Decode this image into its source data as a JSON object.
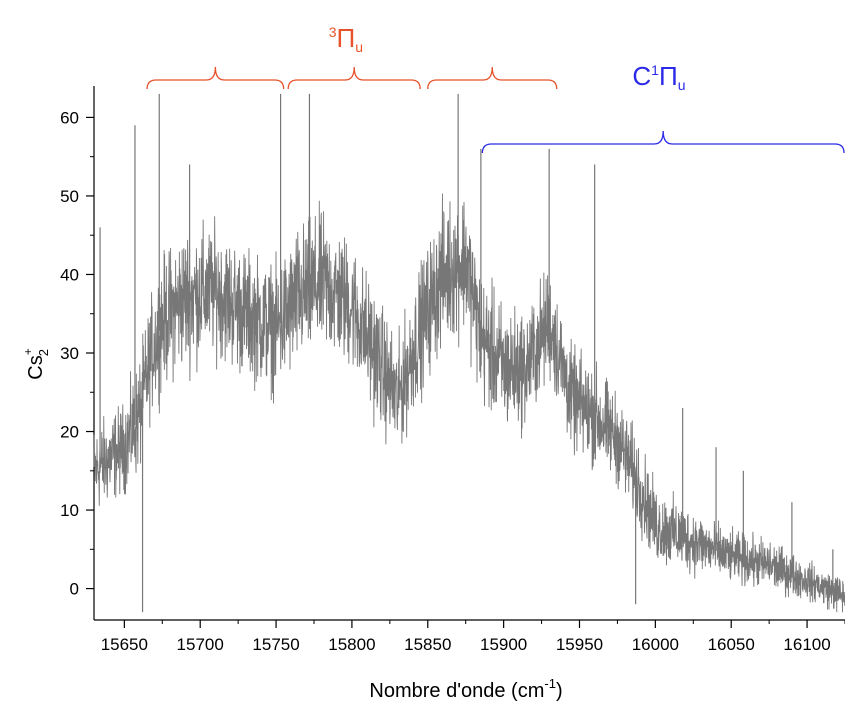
{
  "chart_data": {
    "type": "line",
    "title": "",
    "xlabel": "Nombre d'onde (cm",
    "xlabel_sup": "-1",
    "xlabel_close": ")",
    "ylabel_base": "Cs",
    "ylabel_sup": "+",
    "ylabel_sub": "2",
    "xlim": [
      15630,
      16125
    ],
    "ylim": [
      -4,
      64
    ],
    "grid": false,
    "x_ticks": [
      15650,
      15700,
      15750,
      15800,
      15850,
      15900,
      15950,
      16000,
      16050,
      16100
    ],
    "x_tick_labels": [
      "15650",
      "15700",
      "15750",
      "15800",
      "15850",
      "15900",
      "15950",
      "16000",
      "16050",
      "16100"
    ],
    "y_ticks": [
      0,
      10,
      20,
      30,
      40,
      50,
      60
    ],
    "y_tick_labels": [
      "0",
      "10",
      "20",
      "30",
      "40",
      "50",
      "60"
    ],
    "series": [
      {
        "name": "",
        "color": "#777777",
        "envelope": {
          "x": [
            15630,
            15650,
            15660,
            15668,
            15675,
            15690,
            15710,
            15730,
            15750,
            15765,
            15780,
            15800,
            15815,
            15830,
            15845,
            15860,
            15875,
            15885,
            15900,
            15915,
            15930,
            15945,
            15960,
            15975,
            15990,
            16000,
            16025,
            16050,
            16075,
            16100,
            16125
          ],
          "y": [
            15,
            18,
            22,
            30,
            34,
            37,
            38,
            35,
            33,
            37,
            39,
            36,
            30,
            24,
            33,
            40,
            42,
            32,
            28,
            28,
            34,
            24,
            22,
            19,
            13,
            8,
            6,
            4,
            3,
            1,
            -1
          ],
          "spread": [
            7,
            7,
            9,
            9,
            10,
            11,
            10,
            10,
            10,
            11,
            11,
            10,
            10,
            9,
            10,
            11,
            11,
            10,
            10,
            9,
            9,
            8,
            8,
            7,
            7,
            6,
            5,
            4,
            4,
            3,
            3
          ]
        },
        "spikes": [
          {
            "x": 15634,
            "y": 46
          },
          {
            "x": 15657,
            "y": 59
          },
          {
            "x": 15662,
            "y": -3
          },
          {
            "x": 15673,
            "y": 63
          },
          {
            "x": 15693,
            "y": 54
          },
          {
            "x": 15753,
            "y": 63
          },
          {
            "x": 15772,
            "y": 63
          },
          {
            "x": 15870,
            "y": 63
          },
          {
            "x": 15885,
            "y": 56
          },
          {
            "x": 15930,
            "y": 56
          },
          {
            "x": 15960,
            "y": 54
          },
          {
            "x": 15987,
            "y": -2
          },
          {
            "x": 16018,
            "y": 23
          },
          {
            "x": 16040,
            "y": 18
          },
          {
            "x": 16058,
            "y": 15
          },
          {
            "x": 16090,
            "y": 11
          },
          {
            "x": 16117,
            "y": 5
          }
        ]
      }
    ],
    "annotations": [
      {
        "name": "triplet",
        "sup": "3",
        "label": "Π",
        "sub": "u",
        "color": "#e8522a",
        "label_x": 15800,
        "brackets": [
          [
            15665,
            15755
          ],
          [
            15758,
            15845
          ],
          [
            15850,
            15935
          ]
        ]
      },
      {
        "name": "singlet",
        "prefix": "C",
        "sup": "1",
        "label": "Π",
        "sub": "u",
        "color": "#2a2ae8",
        "label_x": 16005,
        "brackets": [
          [
            15886,
            16125
          ]
        ]
      }
    ]
  }
}
